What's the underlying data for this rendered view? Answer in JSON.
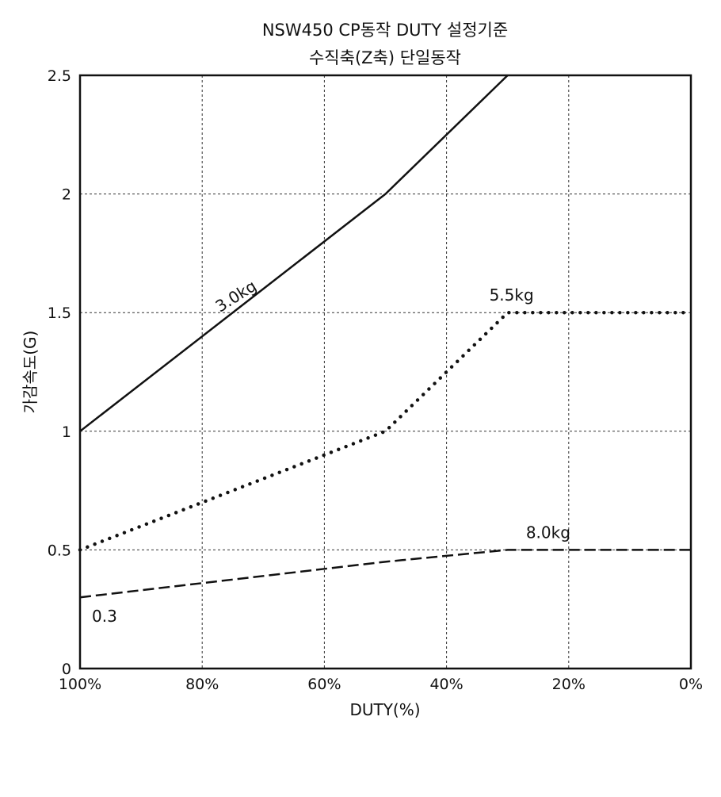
{
  "chart_data": {
    "type": "line",
    "title": "NSW450 CP동작 DUTY 설정기준",
    "subtitle": "수직축(Z축) 단일동작",
    "xlabel": "DUTY(%)",
    "ylabel": "가감속도(G)",
    "xlim": [
      100,
      0
    ],
    "ylim": [
      0,
      2.5
    ],
    "x_ticks": [
      100,
      80,
      60,
      40,
      20,
      0
    ],
    "x_tick_labels": [
      "100%",
      "80%",
      "60%",
      "40%",
      "20%",
      "0%"
    ],
    "y_ticks": [
      0,
      0.5,
      1,
      1.5,
      2,
      2.5
    ],
    "y_tick_labels": [
      "0",
      "0.5",
      "1",
      "1.5",
      "2",
      "2.5"
    ],
    "grid": true,
    "series": [
      {
        "name": "3.0kg",
        "line_style": "solid",
        "color": "#111111",
        "points": [
          [
            100,
            1.0
          ],
          [
            50,
            2.0
          ],
          [
            30,
            2.5
          ]
        ]
      },
      {
        "name": "5.5kg",
        "line_style": "dotted",
        "color": "#111111",
        "points": [
          [
            100,
            0.5
          ],
          [
            80,
            0.7
          ],
          [
            60,
            0.9
          ],
          [
            50,
            1.0
          ],
          [
            30,
            1.5
          ],
          [
            0,
            1.5
          ]
        ]
      },
      {
        "name": "8.0kg",
        "line_style": "dashed",
        "color": "#111111",
        "points": [
          [
            100,
            0.3
          ],
          [
            50,
            0.45
          ],
          [
            30,
            0.5
          ],
          [
            0,
            0.5
          ]
        ]
      }
    ],
    "annotations": [
      {
        "text": "0.3",
        "x": 100,
        "y": 0.3
      }
    ]
  }
}
